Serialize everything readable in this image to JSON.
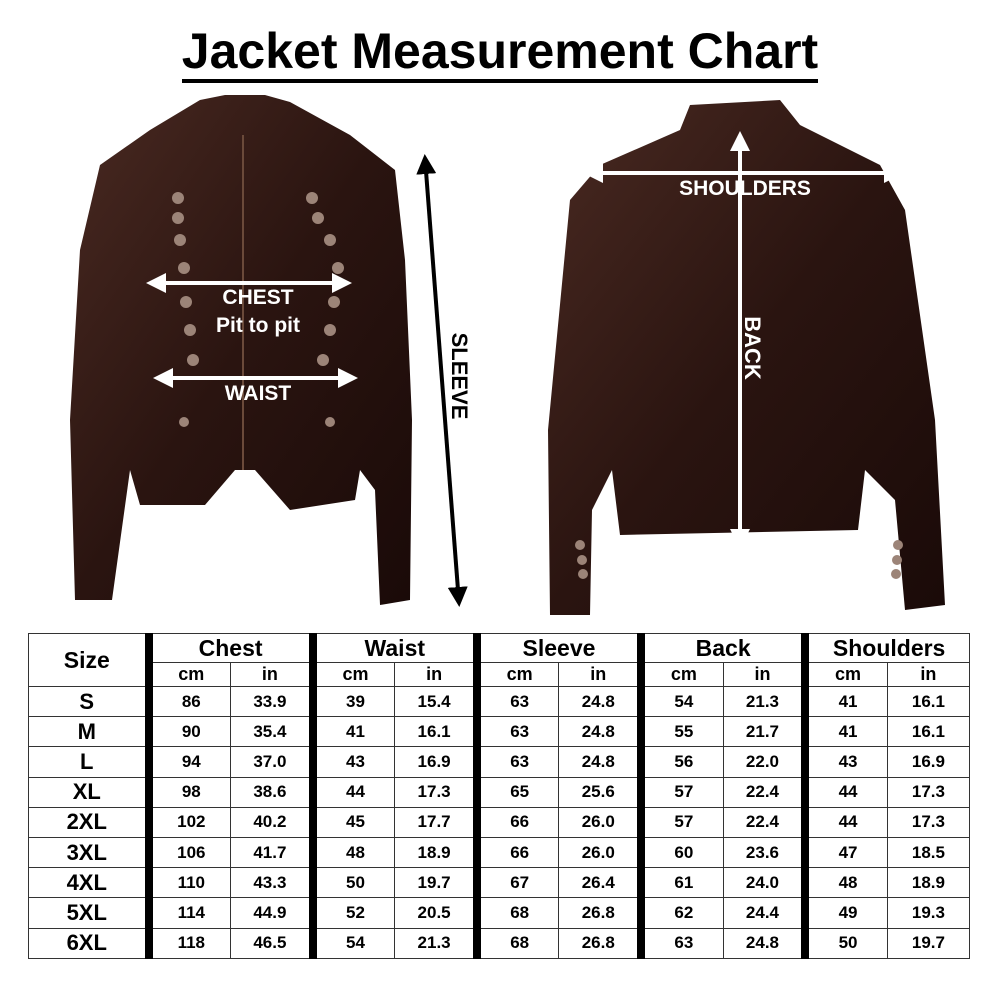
{
  "title": "Jacket Measurement Chart",
  "front_labels": {
    "chest": "CHEST",
    "chest_sub": "Pit to pit",
    "waist": "WAIST",
    "sleeve": "SLEEVE"
  },
  "back_labels": {
    "shoulders": "SHOULDERS",
    "back": "BACK"
  },
  "colors": {
    "leather": "#2a1410",
    "arrow": "#ffffff",
    "sleeve_arrow": "#000000"
  },
  "table": {
    "size_header": "Size",
    "groups": [
      "Chest",
      "Waist",
      "Sleeve",
      "Back",
      "Shoulders"
    ],
    "units": [
      "cm",
      "in"
    ],
    "rows": [
      {
        "size": "S",
        "values": [
          "86",
          "33.9",
          "39",
          "15.4",
          "63",
          "24.8",
          "54",
          "21.3",
          "41",
          "16.1"
        ]
      },
      {
        "size": "M",
        "values": [
          "90",
          "35.4",
          "41",
          "16.1",
          "63",
          "24.8",
          "55",
          "21.7",
          "41",
          "16.1"
        ]
      },
      {
        "size": "L",
        "values": [
          "94",
          "37.0",
          "43",
          "16.9",
          "63",
          "24.8",
          "56",
          "22.0",
          "43",
          "16.9"
        ]
      },
      {
        "size": "XL",
        "values": [
          "98",
          "38.6",
          "44",
          "17.3",
          "65",
          "25.6",
          "57",
          "22.4",
          "44",
          "17.3"
        ]
      },
      {
        "size": "2XL",
        "values": [
          "102",
          "40.2",
          "45",
          "17.7",
          "66",
          "26.0",
          "57",
          "22.4",
          "44",
          "17.3"
        ]
      },
      {
        "size": "3XL",
        "values": [
          "106",
          "41.7",
          "48",
          "18.9",
          "66",
          "26.0",
          "60",
          "23.6",
          "47",
          "18.5"
        ]
      },
      {
        "size": "4XL",
        "values": [
          "110",
          "43.3",
          "50",
          "19.7",
          "67",
          "26.4",
          "61",
          "24.0",
          "48",
          "18.9"
        ]
      },
      {
        "size": "5XL",
        "values": [
          "114",
          "44.9",
          "52",
          "20.5",
          "68",
          "26.8",
          "62",
          "24.4",
          "49",
          "19.3"
        ]
      },
      {
        "size": "6XL",
        "values": [
          "118",
          "46.5",
          "54",
          "21.3",
          "68",
          "26.8",
          "63",
          "24.8",
          "50",
          "19.7"
        ]
      }
    ]
  }
}
